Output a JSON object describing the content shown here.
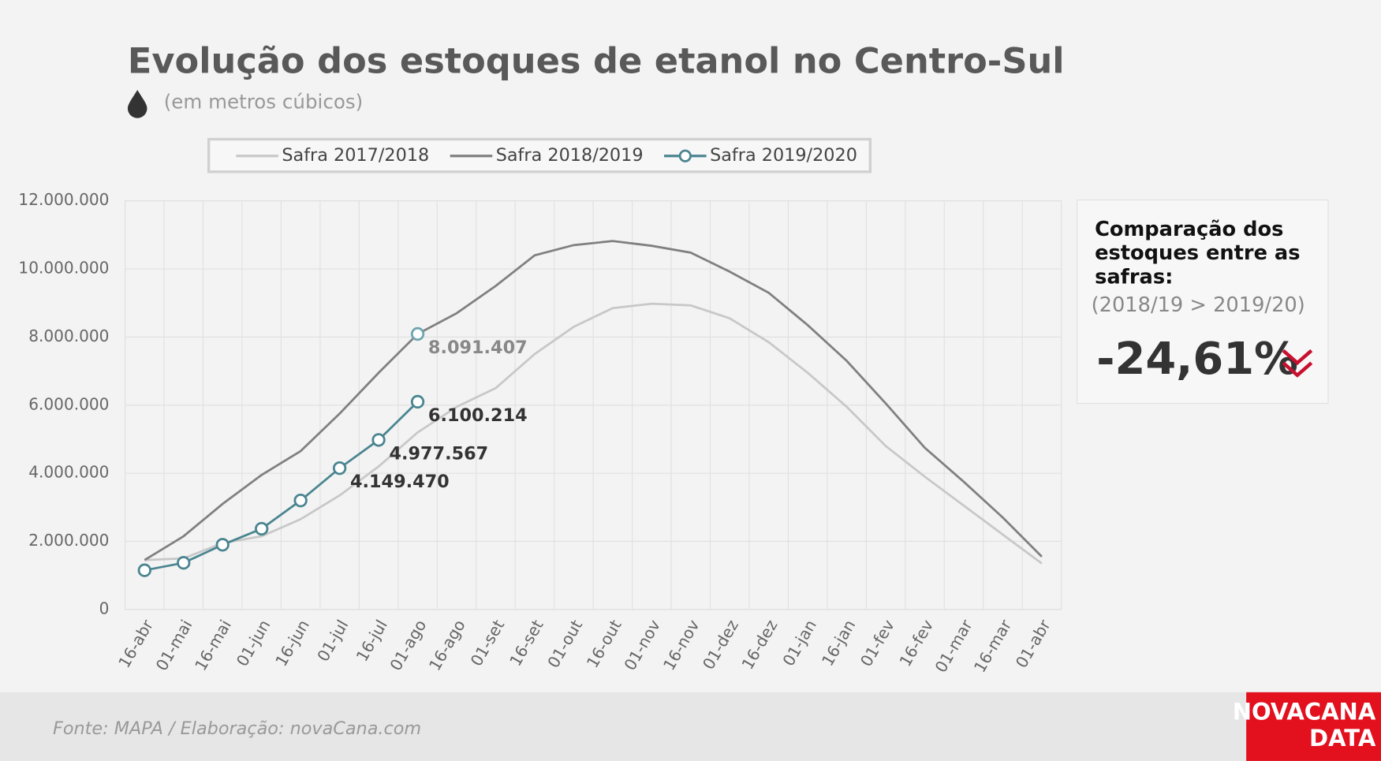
{
  "chart_data": {
    "type": "line",
    "title": "Evolução dos estoques de etanol no Centro-Sul",
    "subtitle": "(em metros cúbicos)",
    "categories": [
      "16-abr",
      "01-mai",
      "16-mai",
      "01-jun",
      "16-jun",
      "01-jul",
      "16-jul",
      "01-ago",
      "16-ago",
      "01-set",
      "16-set",
      "01-out",
      "16-out",
      "01-nov",
      "16-nov",
      "01-dez",
      "16-dez",
      "01-jan",
      "16-jan",
      "01-fev",
      "16-fev",
      "01-mar",
      "16-mar",
      "01-abr"
    ],
    "series": [
      {
        "name": "Safra 2017/2018",
        "color": "#c8c8c8",
        "values": [
          1450000,
          1500000,
          1950000,
          2150000,
          2650000,
          3350000,
          4200000,
          5200000,
          5950000,
          6500000,
          7500000,
          8300000,
          8850000,
          8980000,
          8930000,
          8550000,
          7850000,
          6950000,
          5950000,
          4800000,
          3900000,
          3050000,
          2200000,
          1350000
        ]
      },
      {
        "name": "Safra 2018/2019",
        "color": "#808080",
        "values": [
          1450000,
          2150000,
          3100000,
          3950000,
          4650000,
          5750000,
          6950000,
          8091407,
          8700000,
          9500000,
          10400000,
          10700000,
          10820000,
          10680000,
          10480000,
          9920000,
          9300000,
          8350000,
          7300000,
          6050000,
          4750000,
          3750000,
          2700000,
          1550000
        ],
        "value_labels": [
          null,
          null,
          null,
          null,
          null,
          null,
          null,
          "8.091.407",
          null,
          null,
          null,
          null,
          null,
          null,
          null,
          null,
          null,
          null,
          null,
          null,
          null,
          null,
          null,
          null
        ]
      },
      {
        "name": "Safra 2019/2020",
        "color": "#4a8590",
        "values": [
          1150000,
          1370000,
          1900000,
          2370000,
          3200000,
          4149470,
          4977567,
          6100214,
          null,
          null,
          null,
          null,
          null,
          null,
          null,
          null,
          null,
          null,
          null,
          null,
          null,
          null,
          null,
          null
        ],
        "value_labels": [
          null,
          null,
          null,
          null,
          null,
          "4.149.470",
          "4.977.567",
          "6.100.214",
          null,
          null,
          null,
          null,
          null,
          null,
          null,
          null,
          null,
          null,
          null,
          null,
          null,
          null,
          null,
          null
        ]
      }
    ],
    "ylim": [
      0,
      12000000
    ],
    "yticks": [
      0,
      {
        "value": 2000000,
        "label": "2.000.000"
      },
      {
        "value": 4000000,
        "label": "4.000.000"
      },
      {
        "value": 6000000,
        "label": "6.000.000"
      },
      {
        "value": 8000000,
        "label": "8.000.000"
      },
      {
        "value": 10000000,
        "label": "10.000.000"
      },
      {
        "value": 12000000,
        "label": "12.000.000"
      }
    ],
    "grid": true,
    "legend": "top"
  },
  "panel": {
    "title": [
      "Comparação dos",
      "estoques entre as",
      "safras:"
    ],
    "subtitle": "(2018/19 > 2019/20)",
    "value": "-24,61%"
  },
  "footer": {
    "source": "Fonte: MAPA  / Elaboração: novaCana.com",
    "logo": [
      "NOVACANA",
      "DATA"
    ]
  }
}
